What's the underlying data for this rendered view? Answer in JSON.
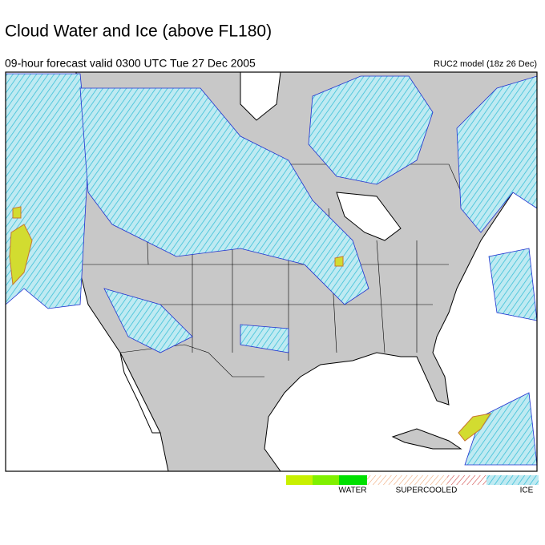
{
  "header": {
    "title": "Cloud Water and Ice (above FL180)",
    "subtitle": "09-hour forecast valid 0300 UTC Tue 27 Dec 2005",
    "model": "RUC2 model (18z 26 Dec)"
  },
  "legend": {
    "items": [
      "WATER",
      "SUPERCOOLED",
      "ICE"
    ]
  }
}
